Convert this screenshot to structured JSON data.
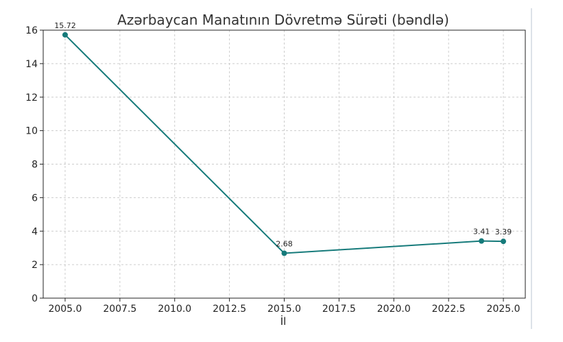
{
  "chart_data": {
    "type": "line",
    "title": "Azərbaycan Manatının Dövretmə Sürəti (bəndlə)",
    "xlabel": "İl",
    "ylabel": "",
    "x": [
      2005,
      2015,
      2024,
      2025
    ],
    "series": [
      {
        "values": [
          15.72,
          2.68,
          3.41,
          3.39
        ],
        "data_labels": [
          "15.72",
          "2.68",
          "3.41",
          "3.39"
        ],
        "color": "#157a7a"
      }
    ],
    "xlim": [
      2004.0,
      2026.0
    ],
    "ylim": [
      0,
      16
    ],
    "xticks": [
      2005.0,
      2007.5,
      2010.0,
      2012.5,
      2015.0,
      2017.5,
      2020.0,
      2022.5,
      2025.0
    ],
    "xtick_labels": [
      "2005.0",
      "2007.5",
      "2010.0",
      "2012.5",
      "2015.0",
      "2017.5",
      "2020.0",
      "2022.5",
      "2025.0"
    ],
    "yticks": [
      0,
      2,
      4,
      6,
      8,
      10,
      12,
      14,
      16
    ],
    "ytick_labels": [
      "0",
      "2",
      "4",
      "6",
      "8",
      "10",
      "12",
      "14",
      "16"
    ],
    "grid": true,
    "grid_color": "#cccccc"
  }
}
